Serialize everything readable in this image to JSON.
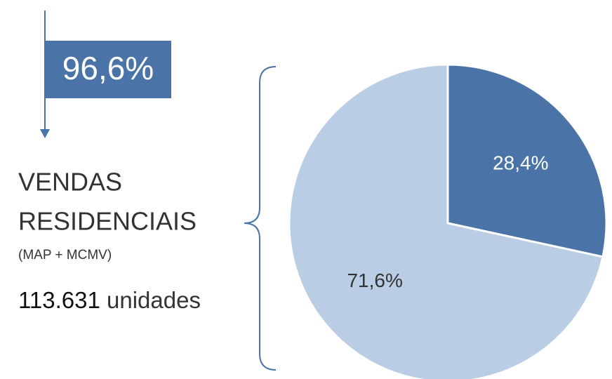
{
  "chart_data": {
    "type": "pie",
    "annotations": [
      "96,6%"
    ],
    "title_lines": [
      "VENDAS",
      "RESIDENCIAIS"
    ],
    "subtitle": "(MAP + MCMV)",
    "total_label": "113.631",
    "total_unit": "unidades",
    "categories": [
      null,
      null
    ],
    "values": [
      28.4,
      71.6
    ],
    "value_labels": [
      "28,4%",
      "71,6%"
    ],
    "colors": [
      "#4a74a8",
      "#b9cde5"
    ]
  }
}
